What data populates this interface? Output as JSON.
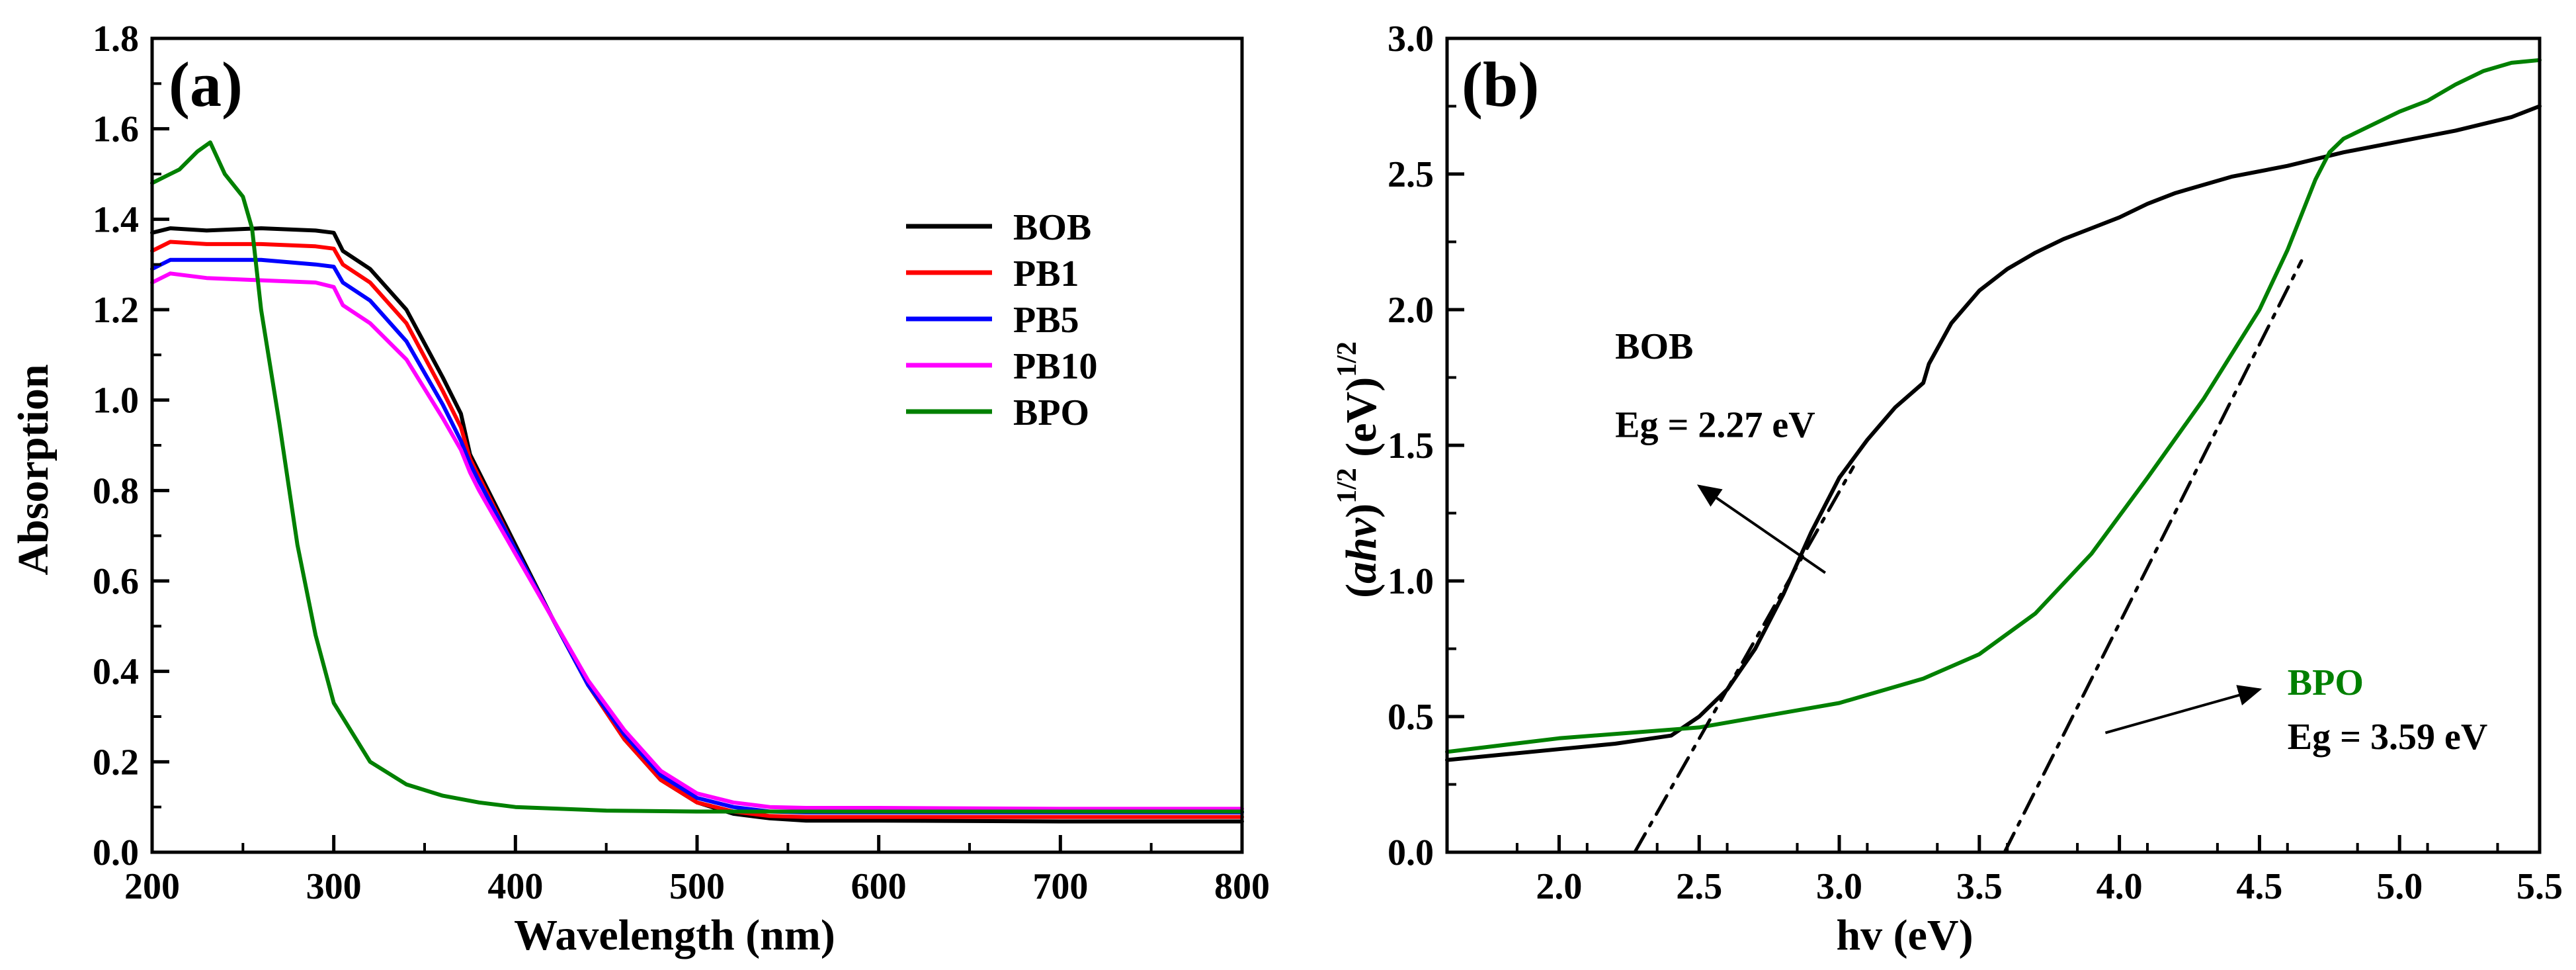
{
  "chart_data": [
    {
      "type": "line",
      "panel_label": "(a)",
      "xlabel": "Wavelength (nm)",
      "ylabel": "Absorption",
      "xlim": [
        200,
        800
      ],
      "ylim": [
        0.0,
        1.8
      ],
      "xticks": [
        "200",
        "300",
        "400",
        "500",
        "600",
        "700",
        "800"
      ],
      "yticks": [
        "0.0",
        "0.2",
        "0.4",
        "0.6",
        "0.8",
        "1.0",
        "1.2",
        "1.4",
        "1.6",
        "1.8"
      ],
      "legend_position": "top-right",
      "series": [
        {
          "name": "BOB",
          "color": "#000000",
          "x": [
            200,
            210,
            230,
            260,
            290,
            300,
            305,
            320,
            340,
            360,
            370,
            375,
            380,
            400,
            420,
            440,
            460,
            480,
            500,
            520,
            540,
            560,
            600,
            700,
            800
          ],
          "y": [
            1.37,
            1.38,
            1.375,
            1.38,
            1.375,
            1.37,
            1.33,
            1.29,
            1.2,
            1.05,
            0.97,
            0.88,
            0.84,
            0.68,
            0.52,
            0.37,
            0.25,
            0.16,
            0.11,
            0.085,
            0.075,
            0.07,
            0.07,
            0.068,
            0.068
          ]
        },
        {
          "name": "PB1",
          "color": "#ff0000",
          "x": [
            200,
            210,
            230,
            260,
            290,
            300,
            305,
            320,
            340,
            360,
            370,
            375,
            380,
            400,
            420,
            440,
            460,
            480,
            500,
            520,
            540,
            560,
            600,
            700,
            800
          ],
          "y": [
            1.33,
            1.35,
            1.345,
            1.345,
            1.34,
            1.335,
            1.3,
            1.26,
            1.17,
            1.02,
            0.94,
            0.87,
            0.83,
            0.67,
            0.52,
            0.37,
            0.25,
            0.16,
            0.11,
            0.09,
            0.08,
            0.078,
            0.078,
            0.078,
            0.078
          ]
        },
        {
          "name": "PB5",
          "color": "#0000ff",
          "x": [
            200,
            210,
            230,
            260,
            290,
            300,
            305,
            320,
            340,
            360,
            370,
            375,
            380,
            400,
            420,
            440,
            460,
            480,
            500,
            520,
            540,
            560,
            600,
            700,
            800
          ],
          "y": [
            1.29,
            1.31,
            1.31,
            1.31,
            1.3,
            1.295,
            1.26,
            1.22,
            1.13,
            0.99,
            0.91,
            0.86,
            0.82,
            0.67,
            0.52,
            0.37,
            0.26,
            0.17,
            0.12,
            0.1,
            0.09,
            0.088,
            0.088,
            0.088,
            0.088
          ]
        },
        {
          "name": "PB10",
          "color": "#ff00ff",
          "x": [
            200,
            210,
            230,
            260,
            290,
            300,
            305,
            320,
            340,
            360,
            370,
            375,
            380,
            400,
            420,
            440,
            460,
            480,
            500,
            520,
            540,
            560,
            600,
            700,
            800
          ],
          "y": [
            1.26,
            1.28,
            1.27,
            1.265,
            1.26,
            1.25,
            1.21,
            1.17,
            1.09,
            0.96,
            0.89,
            0.84,
            0.8,
            0.66,
            0.52,
            0.38,
            0.27,
            0.18,
            0.13,
            0.11,
            0.1,
            0.098,
            0.098,
            0.096,
            0.096
          ]
        },
        {
          "name": "BPO",
          "color": "#008000",
          "x": [
            200,
            205,
            215,
            225,
            232,
            240,
            250,
            255,
            260,
            270,
            280,
            290,
            300,
            320,
            340,
            360,
            380,
            400,
            450,
            500,
            600,
            700,
            800
          ],
          "y": [
            1.48,
            1.49,
            1.51,
            1.55,
            1.57,
            1.5,
            1.45,
            1.38,
            1.2,
            0.95,
            0.68,
            0.48,
            0.33,
            0.2,
            0.15,
            0.125,
            0.11,
            0.1,
            0.092,
            0.09,
            0.09,
            0.09,
            0.09
          ]
        }
      ]
    },
    {
      "type": "line",
      "panel_label": "(b)",
      "xlabel": "hv (eV)",
      "ylabel_parts": [
        "(",
        "ahv",
        ")",
        "1/2",
        " (eV)",
        "1/2"
      ],
      "xlim": [
        1.6,
        5.5
      ],
      "ylim": [
        0.0,
        3.0
      ],
      "xticks": [
        "2.0",
        "2.5",
        "3.0",
        "3.5",
        "4.0",
        "4.5",
        "5.0",
        "5.5"
      ],
      "yticks": [
        "0.0",
        "0.5",
        "1.0",
        "1.5",
        "2.0",
        "2.5",
        "3.0"
      ],
      "series": [
        {
          "name": "BOB",
          "color": "#000000",
          "x": [
            1.6,
            1.8,
            2.0,
            2.2,
            2.4,
            2.5,
            2.6,
            2.7,
            2.8,
            2.9,
            3.0,
            3.1,
            3.2,
            3.3,
            3.32,
            3.4,
            3.5,
            3.6,
            3.7,
            3.8,
            3.9,
            4.0,
            4.1,
            4.2,
            4.4,
            4.6,
            4.8,
            5.0,
            5.2,
            5.4,
            5.5
          ],
          "y": [
            0.34,
            0.36,
            0.38,
            0.4,
            0.43,
            0.5,
            0.6,
            0.75,
            0.95,
            1.18,
            1.38,
            1.52,
            1.64,
            1.73,
            1.8,
            1.95,
            2.07,
            2.15,
            2.21,
            2.26,
            2.3,
            2.34,
            2.39,
            2.43,
            2.49,
            2.53,
            2.58,
            2.62,
            2.66,
            2.71,
            2.75
          ]
        },
        {
          "name": "BPO",
          "color": "#008000",
          "x": [
            1.6,
            2.0,
            2.5,
            3.0,
            3.3,
            3.5,
            3.7,
            3.9,
            4.1,
            4.3,
            4.5,
            4.6,
            4.7,
            4.75,
            4.8,
            4.9,
            5.0,
            5.1,
            5.2,
            5.3,
            5.4,
            5.5
          ],
          "y": [
            0.37,
            0.42,
            0.46,
            0.55,
            0.64,
            0.73,
            0.88,
            1.1,
            1.38,
            1.67,
            2.0,
            2.22,
            2.48,
            2.58,
            2.63,
            2.68,
            2.73,
            2.77,
            2.83,
            2.88,
            2.91,
            2.92
          ]
        },
        {
          "name": "BOB-tangent",
          "color": "#000000",
          "style": "dash-dot",
          "x": [
            2.27,
            3.05
          ],
          "y": [
            0.0,
            1.42
          ]
        },
        {
          "name": "BPO-tangent",
          "color": "#000000",
          "style": "dash-dot",
          "x": [
            3.59,
            4.65
          ],
          "y": [
            0.0,
            2.18
          ]
        }
      ],
      "annotations": [
        {
          "name": "BOB",
          "text": "BOB",
          "color": "#000000",
          "x": 2.2,
          "y": 1.82
        },
        {
          "name": "BOB-eg",
          "text": "Eg = 2.27 eV",
          "color": "#000000",
          "x": 2.2,
          "y": 1.53
        },
        {
          "name": "BPO",
          "text": "BPO",
          "color": "#008000",
          "x": 4.6,
          "y": 0.58
        },
        {
          "name": "BPO-eg",
          "text": "Eg = 3.59 eV",
          "color": "#000000",
          "x": 4.6,
          "y": 0.38
        }
      ],
      "arrows": [
        {
          "name": "BOB-arrow",
          "from": [
            2.95,
            1.03
          ],
          "to": [
            2.5,
            1.35
          ]
        },
        {
          "name": "BPO-arrow",
          "from": [
            3.95,
            0.44
          ],
          "to": [
            4.5,
            0.6
          ]
        }
      ]
    }
  ]
}
